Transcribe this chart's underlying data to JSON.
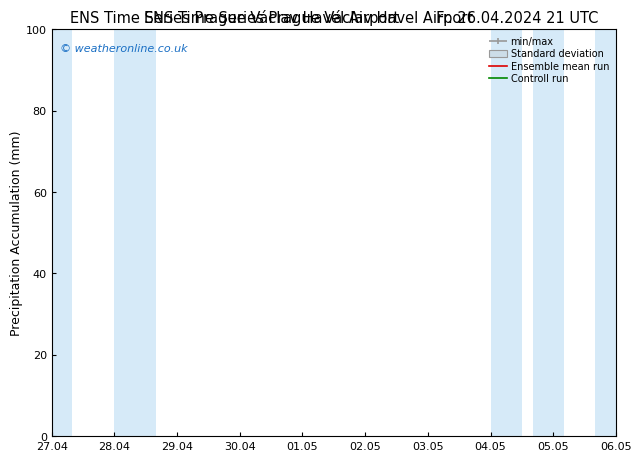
{
  "title_left": "ENS Time Series Prague Václav Havel Airport",
  "title_right": "Fr. 26.04.2024 21 UTC",
  "ylabel": "Precipitation Accumulation (mm)",
  "ylim": [
    0,
    100
  ],
  "yticks": [
    0,
    20,
    40,
    60,
    80,
    100
  ],
  "xlim_start": 0,
  "xlim_end": 9,
  "xtick_labels": [
    "27.04",
    "28.04",
    "29.04",
    "30.04",
    "01.05",
    "02.05",
    "03.05",
    "04.05",
    "05.05",
    "06.05"
  ],
  "xtick_positions": [
    0,
    1,
    2,
    3,
    4,
    5,
    6,
    7,
    8,
    9
  ],
  "shaded_regions": [
    [
      0.0,
      0.33
    ],
    [
      1.0,
      1.67
    ],
    [
      7.0,
      7.5
    ],
    [
      7.67,
      8.17
    ],
    [
      8.67,
      9.0
    ]
  ],
  "bg_color": "#ffffff",
  "band_color": "#d6eaf8",
  "title_fontsize": 10.5,
  "axis_label_fontsize": 9,
  "tick_fontsize": 8,
  "copyright_text": "© weatheronline.co.uk",
  "copyright_color": "#1a6fc4",
  "legend_minmax_color": "#999999",
  "legend_std_color": "#ccdde8",
  "legend_ens_color": "#dd0000",
  "legend_ctrl_color": "#008800"
}
